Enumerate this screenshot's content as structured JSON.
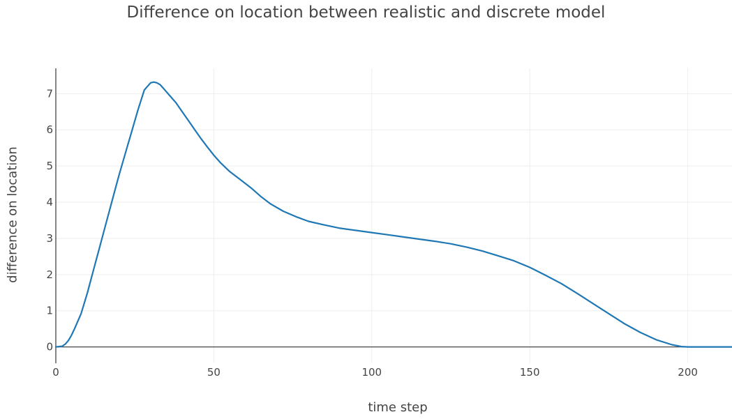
{
  "chart_data": {
    "type": "line",
    "title": "Difference on location between realistic and discrete model",
    "xlabel": "time step",
    "ylabel": "difference on location",
    "xlim": [
      0,
      214
    ],
    "ylim": [
      -0.45,
      7.7
    ],
    "xticks": [
      0,
      50,
      100,
      150,
      200
    ],
    "yticks": [
      0,
      1,
      2,
      3,
      4,
      5,
      6,
      7
    ],
    "grid": true,
    "legend": "none",
    "line_color": "#1f77b4",
    "series": [
      {
        "x": [
          0,
          2,
          3,
          4,
          5,
          6,
          8,
          10,
          12,
          14,
          16,
          18,
          20,
          22,
          24,
          26,
          28,
          30,
          31,
          32,
          33,
          34,
          35,
          36,
          38,
          40,
          42,
          44,
          46,
          48,
          50,
          52,
          55,
          58,
          62,
          65,
          68,
          72,
          76,
          80,
          85,
          90,
          95,
          100,
          105,
          110,
          115,
          120,
          125,
          130,
          135,
          140,
          145,
          150,
          155,
          160,
          165,
          170,
          175,
          180,
          185,
          190,
          195,
          198,
          200,
          205,
          210,
          214
        ],
        "values": [
          0,
          0.02,
          0.08,
          0.18,
          0.33,
          0.52,
          0.92,
          1.5,
          2.15,
          2.8,
          3.45,
          4.1,
          4.75,
          5.35,
          5.95,
          6.55,
          7.1,
          7.3,
          7.32,
          7.3,
          7.25,
          7.15,
          7.05,
          6.95,
          6.75,
          6.5,
          6.25,
          6.0,
          5.75,
          5.52,
          5.3,
          5.1,
          4.85,
          4.65,
          4.38,
          4.15,
          3.95,
          3.75,
          3.6,
          3.47,
          3.37,
          3.28,
          3.22,
          3.16,
          3.1,
          3.04,
          2.98,
          2.92,
          2.85,
          2.76,
          2.65,
          2.52,
          2.38,
          2.2,
          1.98,
          1.75,
          1.48,
          1.2,
          0.92,
          0.64,
          0.4,
          0.2,
          0.06,
          0.01,
          0,
          0,
          0,
          0
        ]
      }
    ]
  }
}
